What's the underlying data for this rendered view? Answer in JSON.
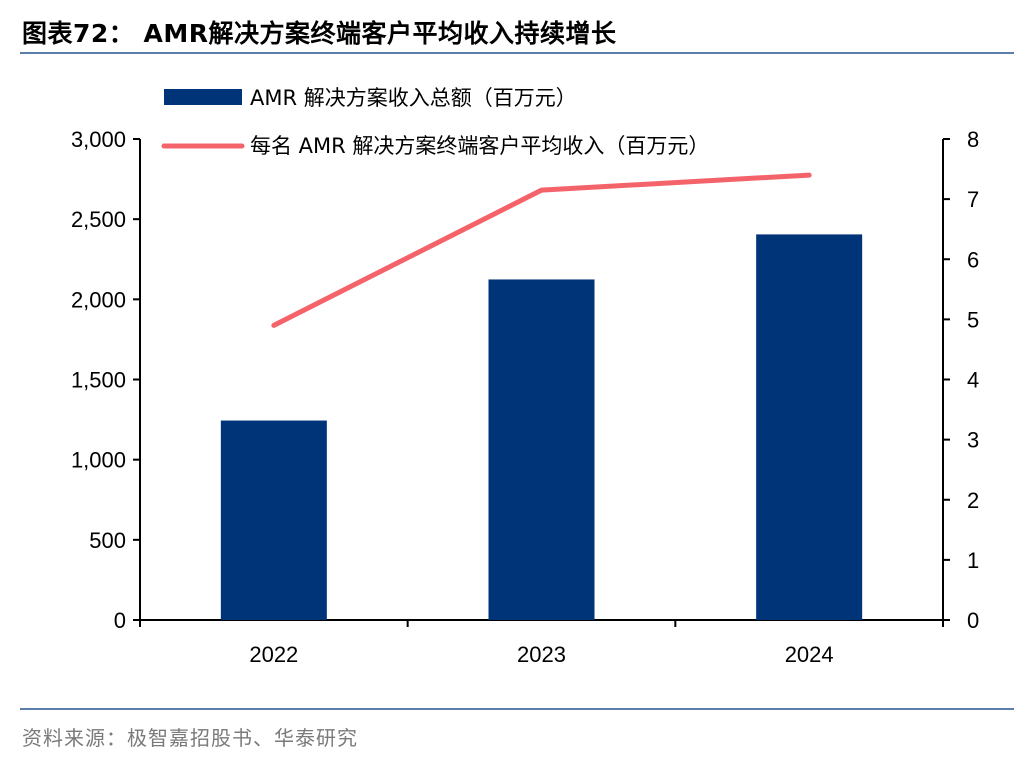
{
  "header": {
    "title": "图表72： AMR解决方案终端客户平均收入持续增长"
  },
  "footer": {
    "source": "资料来源：极智嘉招股书、华泰研究"
  },
  "chart_data": {
    "type": "bar",
    "categories": [
      "2022",
      "2023",
      "2024"
    ],
    "series": [
      {
        "name": "AMR 解决方案收入总额（百万元）",
        "type": "bar",
        "axis": "left",
        "color": "#003478",
        "values": [
          1244,
          2124,
          2405
        ]
      },
      {
        "name": "每名 AMR 解决方案终端客户平均收入（百万元）",
        "type": "line",
        "axis": "right",
        "color": "#f4636a",
        "values": [
          4.9,
          7.15,
          7.4
        ]
      }
    ],
    "y_left": {
      "min": 0,
      "max": 3000,
      "step": 500,
      "tick_labels": [
        "0",
        "500",
        "1,000",
        "1,500",
        "2,000",
        "2,500",
        "3,000"
      ]
    },
    "y_right": {
      "min": 0,
      "max": 8,
      "step": 1,
      "tick_labels": [
        "0",
        "1",
        "2",
        "3",
        "4",
        "5",
        "6",
        "7",
        "8"
      ]
    },
    "grid": false,
    "legend_position": "top-left"
  }
}
